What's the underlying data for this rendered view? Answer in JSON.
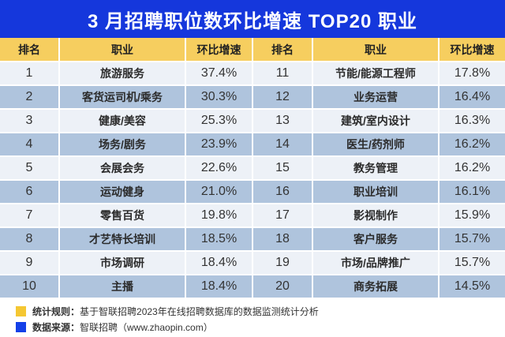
{
  "title": "3 月招聘职位数环比增速 TOP20 职业",
  "table": {
    "headers": [
      "排名",
      "职业",
      "环比增速",
      "排名",
      "职业",
      "环比增速"
    ],
    "rows_left": [
      {
        "rank": "1",
        "occupation": "旅游服务",
        "growth": "37.4%"
      },
      {
        "rank": "2",
        "occupation": "客货运司机/乘务",
        "growth": "30.3%"
      },
      {
        "rank": "3",
        "occupation": "健康/美容",
        "growth": "25.3%"
      },
      {
        "rank": "4",
        "occupation": "场务/剧务",
        "growth": "23.9%"
      },
      {
        "rank": "5",
        "occupation": "会展会务",
        "growth": "22.6%"
      },
      {
        "rank": "6",
        "occupation": "运动健身",
        "growth": "21.0%"
      },
      {
        "rank": "7",
        "occupation": "零售百货",
        "growth": "19.8%"
      },
      {
        "rank": "8",
        "occupation": "才艺特长培训",
        "growth": "18.5%"
      },
      {
        "rank": "9",
        "occupation": "市场调研",
        "growth": "18.4%"
      },
      {
        "rank": "10",
        "occupation": "主播",
        "growth": "18.4%"
      }
    ],
    "rows_right": [
      {
        "rank": "11",
        "occupation": "节能/能源工程师",
        "growth": "17.8%"
      },
      {
        "rank": "12",
        "occupation": "业务运营",
        "growth": "16.4%"
      },
      {
        "rank": "13",
        "occupation": "建筑/室内设计",
        "growth": "16.3%"
      },
      {
        "rank": "14",
        "occupation": "医生/药剂师",
        "growth": "16.2%"
      },
      {
        "rank": "15",
        "occupation": "教务管理",
        "growth": "16.2%"
      },
      {
        "rank": "16",
        "occupation": "职业培训",
        "growth": "16.1%"
      },
      {
        "rank": "17",
        "occupation": "影视制作",
        "growth": "15.9%"
      },
      {
        "rank": "18",
        "occupation": "客户服务",
        "growth": "15.7%"
      },
      {
        "rank": "19",
        "occupation": "市场/品牌推广",
        "growth": "15.7%"
      },
      {
        "rank": "20",
        "occupation": "商务拓展",
        "growth": "14.5%"
      }
    ]
  },
  "footer": {
    "stat_rule_label": "统计规则：",
    "stat_rule_text": "基于智联招聘2023年在线招聘数据库的数据监测统计分析",
    "source_label": "数据来源：",
    "source_text": "智联招聘（www.zhaopin.com）"
  },
  "colors": {
    "title_bg": "#1537DC",
    "header_bg": "#F6CE5F",
    "row_light": "#EDF1F7",
    "row_dark": "#AFC4DD",
    "divider": "#FFFFFF",
    "legend_yellow": "#F5C732",
    "legend_blue": "#1440E8",
    "text_dark": "#333333"
  },
  "chart_data": {
    "type": "table",
    "title": "3 月招聘职位数环比增速 TOP20 职业",
    "columns": [
      "排名",
      "职业",
      "环比增速(%)"
    ],
    "rows": [
      [
        1,
        "旅游服务",
        37.4
      ],
      [
        2,
        "客货运司机/乘务",
        30.3
      ],
      [
        3,
        "健康/美容",
        25.3
      ],
      [
        4,
        "场务/剧务",
        23.9
      ],
      [
        5,
        "会展会务",
        22.6
      ],
      [
        6,
        "运动健身",
        21.0
      ],
      [
        7,
        "零售百货",
        19.8
      ],
      [
        8,
        "才艺特长培训",
        18.5
      ],
      [
        9,
        "市场调研",
        18.4
      ],
      [
        10,
        "主播",
        18.4
      ],
      [
        11,
        "节能/能源工程师",
        17.8
      ],
      [
        12,
        "业务运营",
        16.4
      ],
      [
        13,
        "建筑/室内设计",
        16.3
      ],
      [
        14,
        "医生/药剂师",
        16.2
      ],
      [
        15,
        "教务管理",
        16.2
      ],
      [
        16,
        "职业培训",
        16.1
      ],
      [
        17,
        "影视制作",
        15.9
      ],
      [
        18,
        "客户服务",
        15.7
      ],
      [
        19,
        "市场/品牌推广",
        15.7
      ],
      [
        20,
        "商务拓展",
        14.5
      ]
    ],
    "source_note": "统计规则：基于智联招聘2023年在线招聘数据库的数据监测统计分析；数据来源：智联招聘（www.zhaopin.com）"
  }
}
